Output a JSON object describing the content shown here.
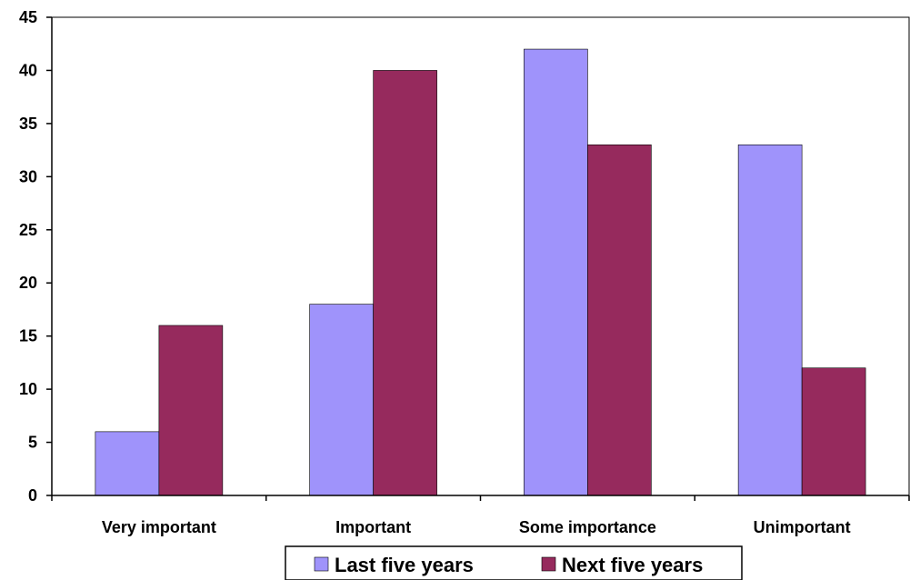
{
  "chart_data": {
    "type": "bar",
    "categories": [
      "Very important",
      "Important",
      "Some importance",
      "Unimportant"
    ],
    "series": [
      {
        "name": "Last five years",
        "values": [
          6,
          18,
          42,
          33
        ],
        "color": "#9f93fb"
      },
      {
        "name": "Next five years",
        "values": [
          16,
          40,
          33,
          12
        ],
        "color": "#962a5d"
      }
    ],
    "ylim": [
      0,
      45
    ],
    "yticks": [
      "0",
      "5",
      "10",
      "15",
      "20",
      "25",
      "30",
      "35",
      "40",
      "45"
    ],
    "ytick_values": [
      0,
      5,
      10,
      15,
      20,
      25,
      30,
      35,
      40,
      45
    ],
    "title": "",
    "xlabel": "",
    "ylabel": "",
    "grid": false,
    "legend_position": "bottom"
  }
}
